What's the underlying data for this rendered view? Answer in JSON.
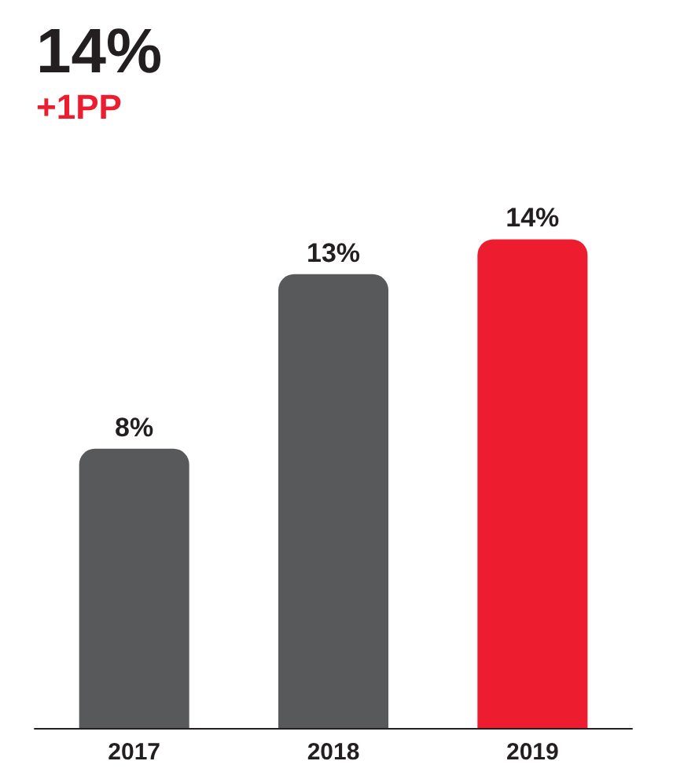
{
  "chart_data": {
    "type": "bar",
    "title": "14%",
    "subtitle": "+1PP",
    "categories": [
      "2017",
      "2018",
      "2019"
    ],
    "values": [
      8,
      13,
      14
    ],
    "value_labels": [
      "8%",
      "13%",
      "14%"
    ],
    "colors": [
      "#58595b",
      "#58595b",
      "#ed1c2e"
    ],
    "grid": false
  }
}
